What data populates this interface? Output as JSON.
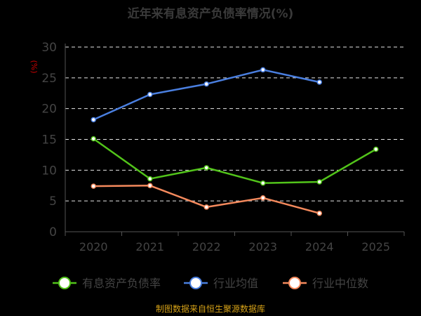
{
  "chart_data": {
    "type": "line",
    "title": "近年来有息资产负债率情况(%)",
    "ylabel": "(%)",
    "xlabel": "",
    "categories": [
      "2020",
      "2021",
      "2022",
      "2023",
      "2024",
      "2025"
    ],
    "ylim": [
      0,
      30
    ],
    "yticks": [
      0,
      5,
      10,
      15,
      20,
      25,
      30
    ],
    "grid": true,
    "legend_position": "bottom",
    "series": [
      {
        "name": "有息资产负债率",
        "color": "#52c41a",
        "values": [
          15.1,
          8.6,
          10.4,
          7.9,
          8.1,
          13.4
        ]
      },
      {
        "name": "行业均值",
        "color": "#4a7fe0",
        "values": [
          18.2,
          22.3,
          24.0,
          26.3,
          24.3,
          null
        ]
      },
      {
        "name": "行业中位数",
        "color": "#f58a5d",
        "values": [
          7.4,
          7.5,
          4.0,
          5.5,
          3.0,
          null
        ]
      }
    ],
    "source": "制图数据来自恒生聚源数据库"
  }
}
